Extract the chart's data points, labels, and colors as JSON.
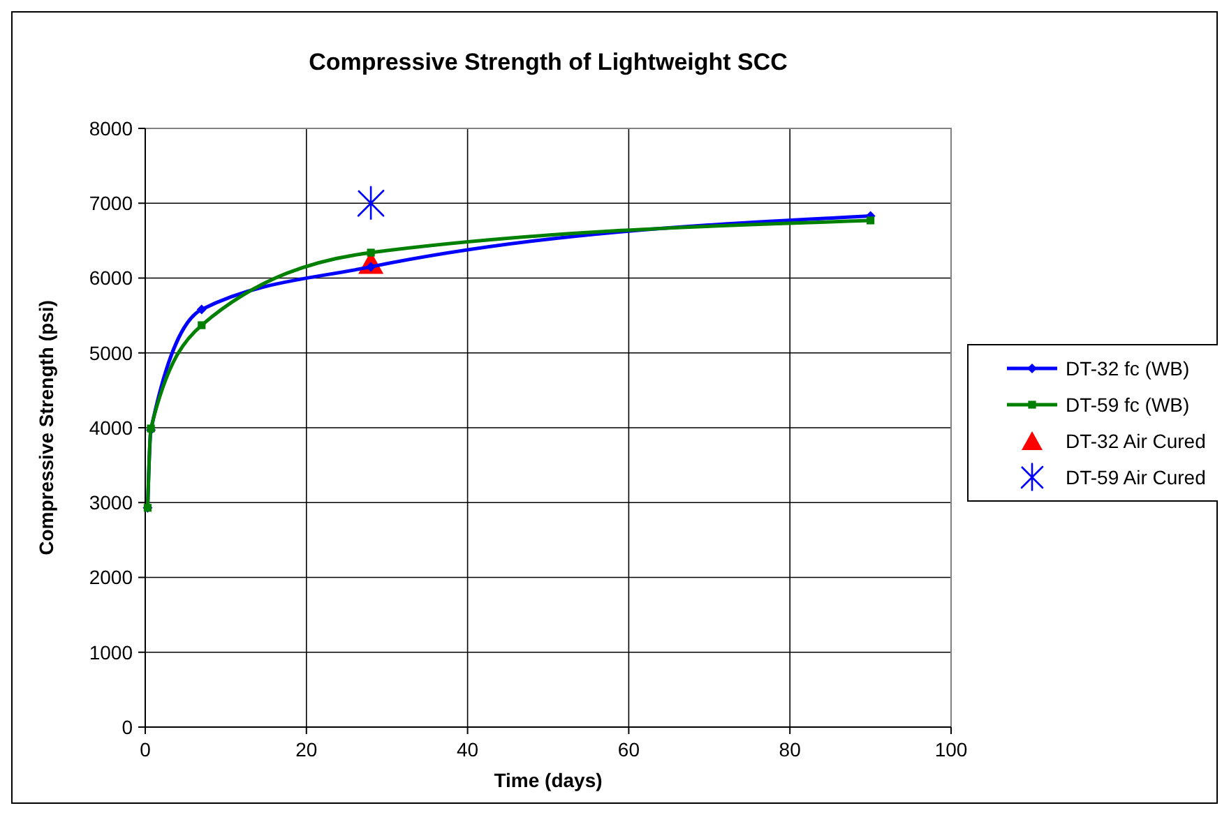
{
  "chart_data": {
    "type": "line",
    "title": "Compressive Strength of Lightweight SCC",
    "xlabel": "Time (days)",
    "ylabel": "Compressive Strength (psi)",
    "xlim": [
      0,
      100
    ],
    "xticks": [
      0,
      20,
      40,
      60,
      80,
      100
    ],
    "ylim": [
      0,
      8000
    ],
    "yticks": [
      0,
      1000,
      2000,
      3000,
      4000,
      5000,
      6000,
      7000,
      8000
    ],
    "grid": true,
    "legend": "right",
    "series": [
      {
        "name": "DT-32 fc (WB)",
        "color": "#0000ff",
        "marker": "diamond",
        "x": [
          0.3,
          0.7,
          7,
          28,
          90
        ],
        "values": [
          2930,
          3970,
          5580,
          6150,
          6830
        ]
      },
      {
        "name": "DT-59 fc (WB)",
        "color": "#008000",
        "marker": "square",
        "x": [
          0.3,
          0.7,
          7,
          28,
          90
        ],
        "values": [
          2930,
          3990,
          5370,
          6340,
          6770
        ]
      },
      {
        "name": "DT-32 Air Cured",
        "type": "scatter",
        "color": "#ff0000",
        "marker": "triangle",
        "x": [
          28
        ],
        "values": [
          6180
        ]
      },
      {
        "name": "DT-59 Air Cured",
        "type": "scatter",
        "color": "#0000ff",
        "marker": "cross",
        "x": [
          28
        ],
        "values": [
          7000
        ]
      }
    ]
  }
}
